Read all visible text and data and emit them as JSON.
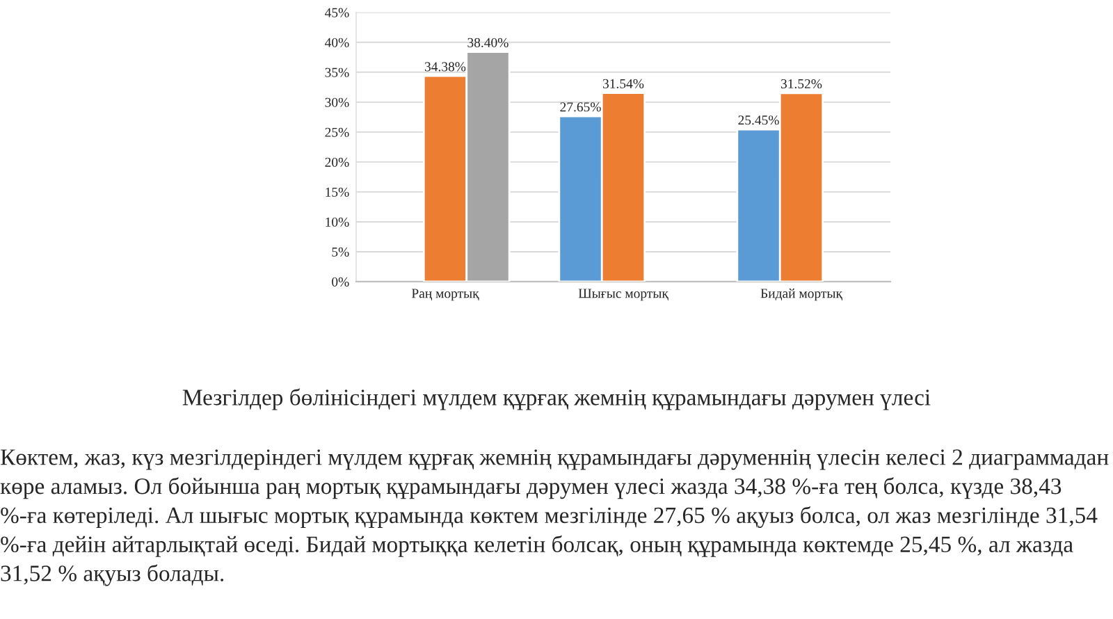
{
  "chart_data": {
    "type": "bar",
    "categories": [
      "Раң мортық",
      "Шығыс мортық",
      "Бидай мортық"
    ],
    "series": [
      {
        "color": "#5b9bd5",
        "values": [
          null,
          27.65,
          25.45
        ],
        "value_labels": [
          null,
          "27.65%",
          "25.45%"
        ]
      },
      {
        "color": "#ed7d31",
        "values": [
          34.38,
          31.54,
          31.52
        ],
        "value_labels": [
          "34.38%",
          "31.54%",
          "31.52%"
        ]
      },
      {
        "color": "#a5a5a5",
        "values": [
          38.4,
          null,
          null
        ],
        "value_labels": [
          "38.40%",
          null,
          null
        ]
      }
    ],
    "ylim": [
      0,
      45
    ],
    "yticks": [
      {
        "value": 0,
        "label": "0%"
      },
      {
        "value": 5,
        "label": "5%"
      },
      {
        "value": 10,
        "label": "10%"
      },
      {
        "value": 15,
        "label": "15%"
      },
      {
        "value": 20,
        "label": "20%"
      },
      {
        "value": 25,
        "label": "25%"
      },
      {
        "value": 30,
        "label": "30%"
      },
      {
        "value": 35,
        "label": "35%"
      },
      {
        "value": 40,
        "label": "40%"
      },
      {
        "value": 45,
        "label": "45%"
      }
    ],
    "grid": "y",
    "annotations": [
      "Мезгілдер бөлінісіндегі мүлдем құрғақ жемнің құрамындағы дәрумен үлесі",
      "Көктем, жаз, күз мезгілдеріндегі мүлдем құрғақ жемнің құрамындағы дәруменнің үлесін келесі 2 диаграммадан көре аламыз. Ол бойынша раң мортық құрамындағы дәрумен үлесі жазда 34,38 %-ға тең болса, күзде 38,43 %-ға көтеріледі. Ал шығыс мортық құрамында көктем мезгілінде 27,65 % ақуыз болса, ол жаз мезгілінде 31,54 %-ға дейін айтарлықтай өседі. Бидай мортыққа келетін болсақ, оның құрамында көктемде 25,45 %, ал жазда 31,52 % ақуыз болады."
    ]
  }
}
